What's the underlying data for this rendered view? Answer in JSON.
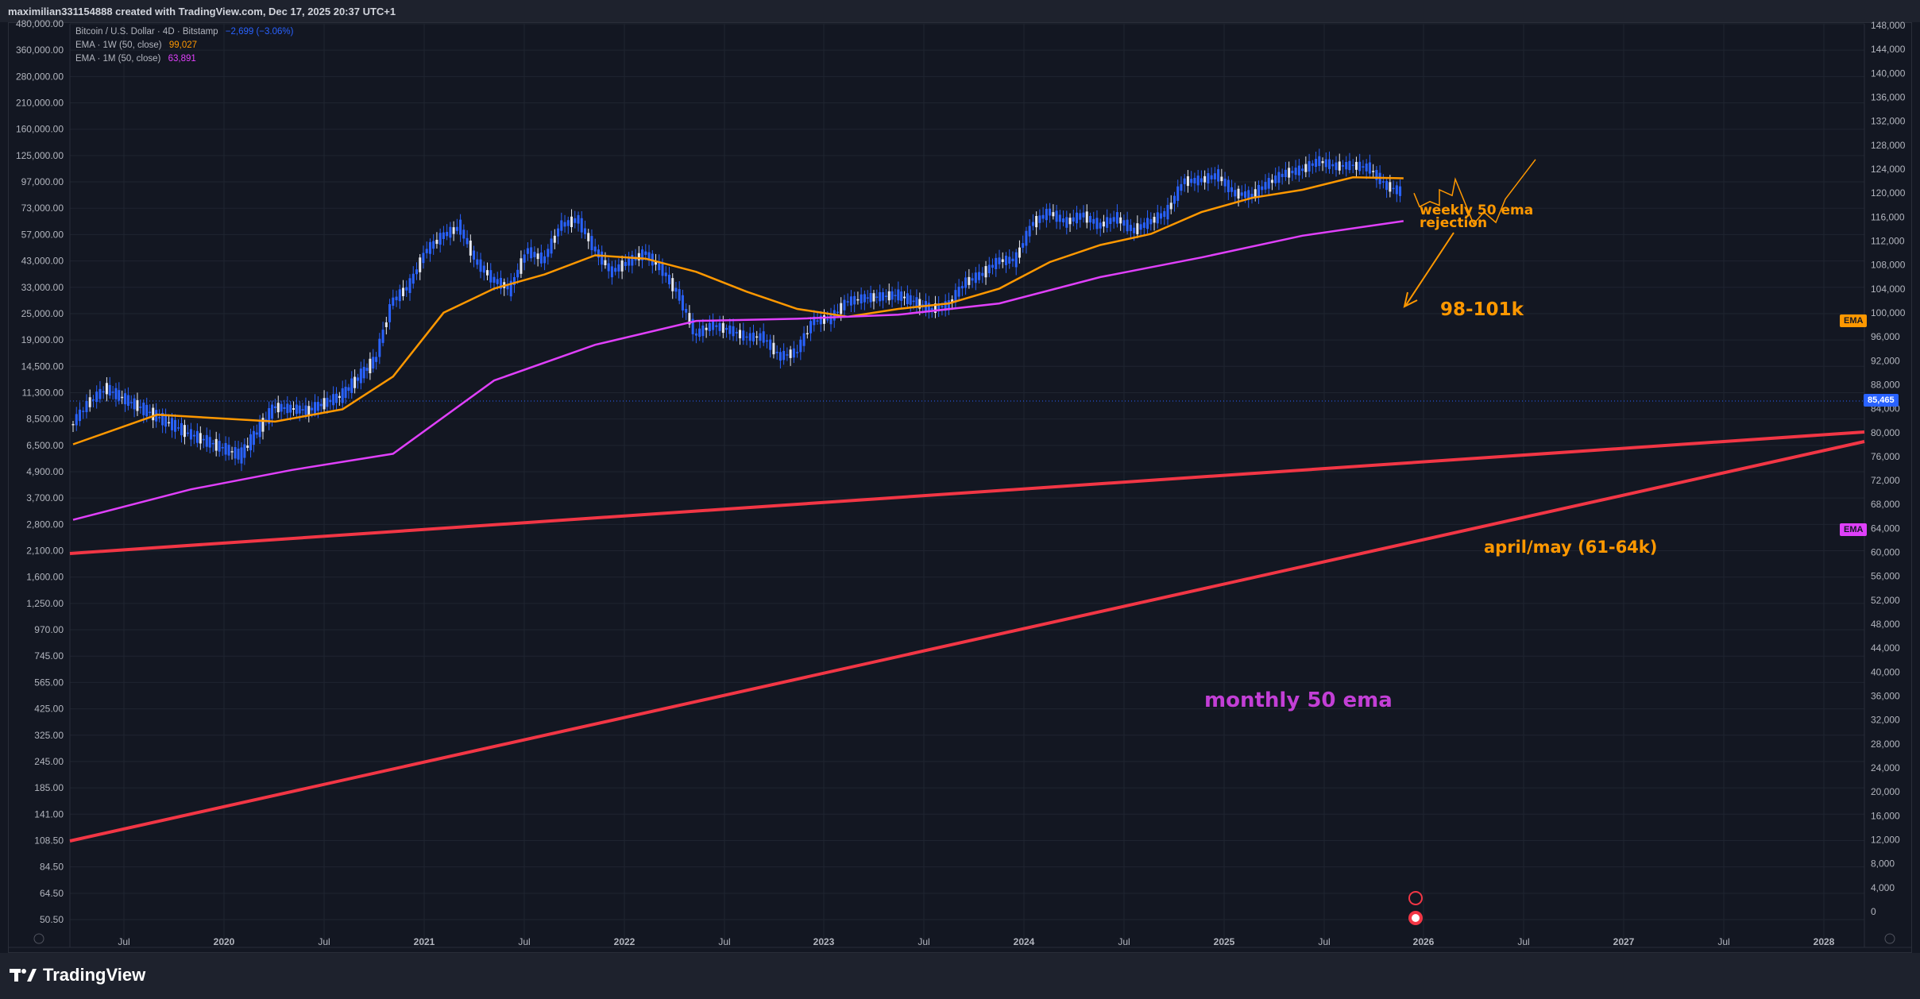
{
  "header": {
    "caption": "maximilian331154888 created with TradingView.com, Dec 17, 2025 20:37 UTC+1"
  },
  "legend": {
    "symbol": "Bitcoin / U.S. Dollar · 4D · Bitstamp",
    "symbol_change": "−2,699 (−3.06%)",
    "ema1_label": "EMA · 1W (50, close)",
    "ema1_value": "99,027",
    "ema2_label": "EMA · 1M (50, close)",
    "ema2_value": "63,891"
  },
  "branding": {
    "name": "TradingView"
  },
  "price_tags": {
    "last_price": "85,465",
    "ema_weekly": "EMA",
    "ema_monthly": "EMA"
  },
  "colors": {
    "background": "#131722",
    "candle": "#2962ff",
    "candle_light": "#e6e8ef",
    "ema_weekly": "#ff9800",
    "ema_monthly": "#e040fb",
    "trendline": "#f23645",
    "annotation_orange": "#ff9800",
    "annotation_magenta": "#c33fd6"
  },
  "chart_data": {
    "type": "line",
    "title": "Bitcoin / U.S. Dollar · 4D · Bitstamp",
    "left_axis_ticks": [
      "480,000.00",
      "360,000.00",
      "280,000.00",
      "210,000.00",
      "160,000.00",
      "125,000.00",
      "97,000.00",
      "73,000.00",
      "57,000.00",
      "43,000.00",
      "33,000.00",
      "25,000.00",
      "19,000.00",
      "14,500.00",
      "11,300.00",
      "8,500.00",
      "6,500.00",
      "4,900.00",
      "3,700.00",
      "2,800.00",
      "2,100.00",
      "1,600.00",
      "1,250.00",
      "970.00",
      "745.00",
      "565.00",
      "425.00",
      "325.00",
      "245.00",
      "185.00",
      "141.00",
      "108.50",
      "84.50",
      "64.50",
      "50.50"
    ],
    "right_axis_ticks": [
      "148,000",
      "144,000",
      "140,000",
      "136,000",
      "132,000",
      "128,000",
      "124,000",
      "120,000",
      "116,000",
      "112,000",
      "108,000",
      "104,000",
      "100,000",
      "96,000",
      "92,000",
      "88,000",
      "84,000",
      "80,000",
      "76,000",
      "72,000",
      "68,000",
      "64,000",
      "60,000",
      "56,000",
      "52,000",
      "48,000",
      "44,000",
      "40,000",
      "36,000",
      "32,000",
      "28,000",
      "24,000",
      "20,000",
      "16,000",
      "12,000",
      "8,000",
      "4,000",
      "0"
    ],
    "x_ticks": [
      "Jul",
      "2020",
      "Jul",
      "2021",
      "Jul",
      "2022",
      "Jul",
      "2023",
      "Jul",
      "2024",
      "Jul",
      "2025",
      "Jul",
      "2026",
      "Jul",
      "2027",
      "Jul",
      "2028"
    ],
    "y_scale": "log",
    "grid": true,
    "series": [
      {
        "name": "Bitcoin / U.S. Dollar",
        "x": [
          "2019-05",
          "2019-06",
          "2019-07",
          "2019-09",
          "2019-12",
          "2020-03",
          "2020-05",
          "2020-07",
          "2020-09",
          "2020-11",
          "2020-12",
          "2021-01",
          "2021-02",
          "2021-03",
          "2021-04",
          "2021-05",
          "2021-06",
          "2021-07",
          "2021-08",
          "2021-09",
          "2021-10",
          "2021-11",
          "2021-12",
          "2022-01",
          "2022-02",
          "2022-03",
          "2022-04",
          "2022-05",
          "2022-06",
          "2022-07",
          "2022-08",
          "2022-09",
          "2022-10",
          "2022-11",
          "2022-12",
          "2023-01",
          "2023-02",
          "2023-03",
          "2023-04",
          "2023-06",
          "2023-08",
          "2023-09",
          "2023-10",
          "2023-11",
          "2023-12",
          "2024-01",
          "2024-02",
          "2024-03",
          "2024-04",
          "2024-05",
          "2024-06",
          "2024-07",
          "2024-08",
          "2024-09",
          "2024-10",
          "2024-11",
          "2024-12",
          "2025-01",
          "2025-02",
          "2025-03",
          "2025-04",
          "2025-05",
          "2025-06",
          "2025-07",
          "2025-08",
          "2025-09",
          "2025-10",
          "2025-11",
          "2025-12"
        ],
        "y": [
          8000,
          10000,
          11500,
          9500,
          7200,
          5800,
          9500,
          9200,
          10700,
          15500,
          28000,
          33000,
          47000,
          55000,
          60000,
          42000,
          35000,
          32000,
          47000,
          43000,
          61000,
          65000,
          48000,
          38000,
          42000,
          46000,
          39000,
          30000,
          20000,
          22000,
          21000,
          19500,
          19500,
          16000,
          16700,
          23000,
          23500,
          28000,
          29000,
          30000,
          26000,
          27000,
          34000,
          37000,
          42500,
          43000,
          62000,
          70000,
          63000,
          68000,
          61000,
          66000,
          58000,
          63500,
          70000,
          96000,
          97000,
          102000,
          85000,
          83000,
          94000,
          104000,
          108000,
          118000,
          112000,
          113000,
          110000,
          92000,
          85465
        ]
      },
      {
        "name": "EMA · 1W (50, close)",
        "x": [
          "2019-05",
          "2019-10",
          "2020-05",
          "2020-09",
          "2020-12",
          "2021-03",
          "2021-06",
          "2021-09",
          "2021-12",
          "2022-03",
          "2022-06",
          "2022-09",
          "2022-12",
          "2023-03",
          "2023-06",
          "2023-09",
          "2023-12",
          "2024-03",
          "2024-06",
          "2024-09",
          "2024-12",
          "2025-03",
          "2025-06",
          "2025-09",
          "2025-12"
        ],
        "y": [
          6500,
          8800,
          8200,
          9300,
          13000,
          25000,
          32000,
          37000,
          45000,
          43500,
          38000,
          31000,
          26000,
          24000,
          26000,
          27500,
          32000,
          42000,
          50000,
          56000,
          70000,
          81000,
          88000,
          100000,
          99027
        ]
      },
      {
        "name": "EMA · 1M (50, close)",
        "x": [
          "2019-05",
          "2019-12",
          "2020-06",
          "2020-12",
          "2021-06",
          "2021-12",
          "2022-06",
          "2022-12",
          "2023-06",
          "2023-12",
          "2024-06",
          "2024-12",
          "2025-06",
          "2025-12"
        ],
        "y": [
          3000,
          4100,
          5000,
          5900,
          12500,
          18000,
          23000,
          23500,
          24500,
          27500,
          36000,
          44000,
          55000,
          63891
        ]
      }
    ],
    "annotations": [
      {
        "text": "weekly 50 ema\nrejection",
        "color": "#ff9800"
      },
      {
        "text": "98-101k",
        "color": "#ff9800"
      },
      {
        "text": "april/may (61-64k)",
        "color": "#ff9800"
      },
      {
        "text": "monthly 50 ema",
        "color": "#c33fd6"
      }
    ],
    "projection_path": {
      "name": "projection",
      "x": [
        "2025-12",
        "2026-01",
        "2026-01",
        "2026-02",
        "2026-02",
        "2026-03",
        "2026-04",
        "2026-05",
        "2026-05",
        "2026-06",
        "2026-07",
        "2026-08"
      ],
      "y": [
        85000,
        74000,
        78000,
        75000,
        88000,
        83000,
        98000,
        62000,
        70000,
        63000,
        80000,
        120000
      ]
    }
  }
}
